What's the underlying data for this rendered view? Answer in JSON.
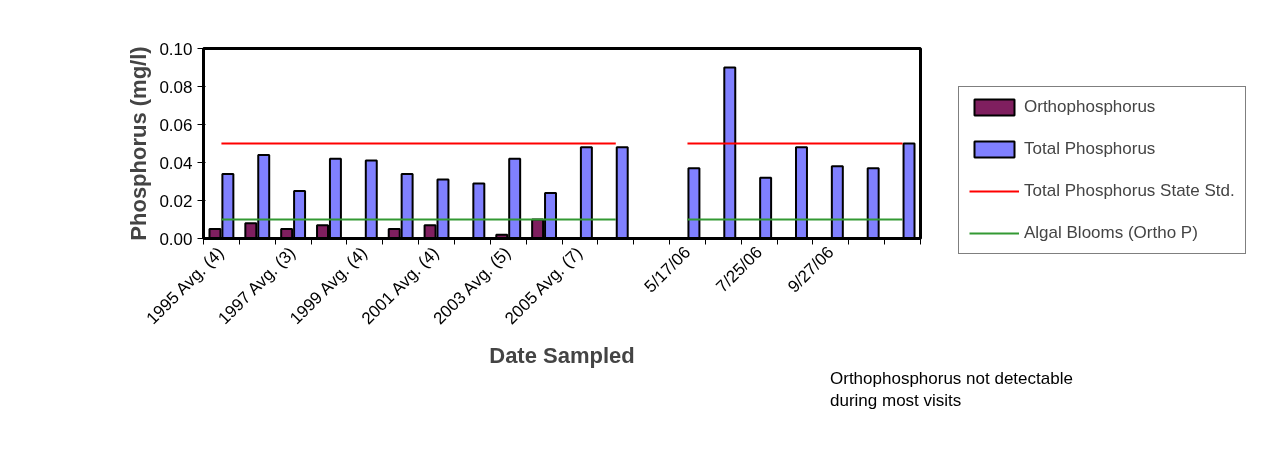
{
  "chart_data": {
    "type": "bar",
    "xlabel": "Date Sampled",
    "ylabel": "Phosphorus (mg/l)",
    "categories": [
      "1995 Avg. (4)",
      null,
      "1997 Avg. (3)",
      null,
      "1999 Avg. (4)",
      null,
      "2001 Avg. (4)",
      null,
      "2003 Avg. (5)",
      null,
      "2005 Avg. (7)",
      null,
      null,
      "5/17/06",
      null,
      "7/25/06",
      null,
      "9/27/06",
      null,
      null
    ],
    "series": [
      {
        "name": "Orthophosphorus",
        "type": "bar",
        "color": "#7f1f5f",
        "values": [
          0.005,
          0.008,
          0.005,
          0.007,
          null,
          0.005,
          0.007,
          null,
          0.002,
          0.01,
          null,
          null,
          null,
          null,
          null,
          null,
          null,
          null,
          null,
          null
        ]
      },
      {
        "name": "Total Phosphorus",
        "type": "bar",
        "color": "#8080ff",
        "values": [
          0.034,
          0.044,
          0.025,
          0.042,
          0.041,
          0.034,
          0.031,
          0.029,
          0.042,
          0.024,
          0.048,
          0.048,
          null,
          0.037,
          0.09,
          0.032,
          0.048,
          0.038,
          0.037,
          0.05
        ]
      },
      {
        "name": "Total Phosphorus State Std.",
        "type": "line",
        "color": "#ff0000",
        "values": [
          0.05,
          0.05,
          0.05,
          0.05,
          0.05,
          0.05,
          0.05,
          0.05,
          0.05,
          0.05,
          0.05,
          0.05,
          null,
          0.05,
          0.05,
          0.05,
          0.05,
          0.05,
          0.05,
          0.05
        ]
      },
      {
        "name": "Algal Blooms (Ortho P)",
        "type": "line",
        "color": "#339933",
        "values": [
          0.01,
          0.01,
          0.01,
          0.01,
          0.01,
          0.01,
          0.01,
          0.01,
          0.01,
          0.01,
          0.01,
          0.01,
          null,
          0.01,
          0.01,
          0.01,
          0.01,
          0.01,
          0.01,
          0.01
        ]
      }
    ],
    "ylim": [
      0,
      0.1
    ],
    "yticks": [
      {
        "value": 0,
        "label": "0.00"
      },
      {
        "value": 0.02,
        "label": "0.02"
      },
      {
        "value": 0.04,
        "label": "0.04"
      },
      {
        "value": 0.06,
        "label": "0.06"
      },
      {
        "value": 0.08,
        "label": "0.08"
      },
      {
        "value": 0.1,
        "label": "0.10"
      }
    ],
    "grid": false,
    "legend": "right",
    "marker": "none",
    "line_style": "solid",
    "annotations": [
      "Orthophosphorus not detectable during most visits"
    ]
  }
}
